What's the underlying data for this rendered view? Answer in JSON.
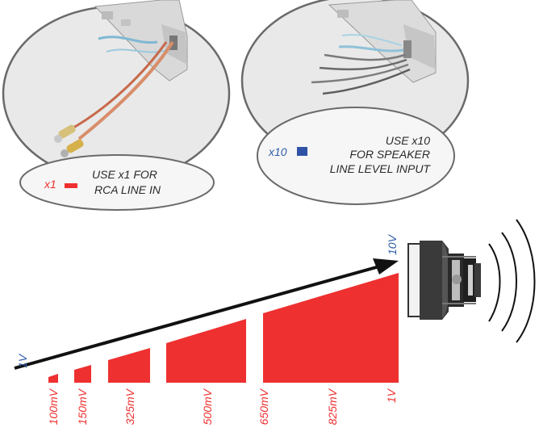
{
  "callouts": {
    "rca": {
      "badge": "x1",
      "line1": "USE x1 FOR",
      "line2": "RCA LINE IN"
    },
    "speaker": {
      "badge": "x10",
      "line1": "USE x10",
      "line2": "FOR SPEAKER",
      "line3": "LINE LEVEL INPUT"
    }
  },
  "arrow": {
    "start_label": "1V",
    "end_label": "10V"
  },
  "levels": [
    {
      "label": "100mV"
    },
    {
      "label": "150mV"
    },
    {
      "label": "325mV"
    },
    {
      "label": "500mV"
    },
    {
      "label": "650mV"
    },
    {
      "label": "825mV"
    },
    {
      "label": "1V"
    }
  ],
  "colors": {
    "red": "#ee3030",
    "blue": "#2e5ea8",
    "badge_blue": "#2f52a6",
    "outline": "#6a6a6a",
    "ellipse_fill": "#f6f6f6",
    "photo_bg": "#e9e9e9",
    "arrow": "#111111"
  },
  "icons": [
    "rca-cable-icon",
    "speaker-wires-icon",
    "subwoofer-icon",
    "sound-waves-icon"
  ]
}
